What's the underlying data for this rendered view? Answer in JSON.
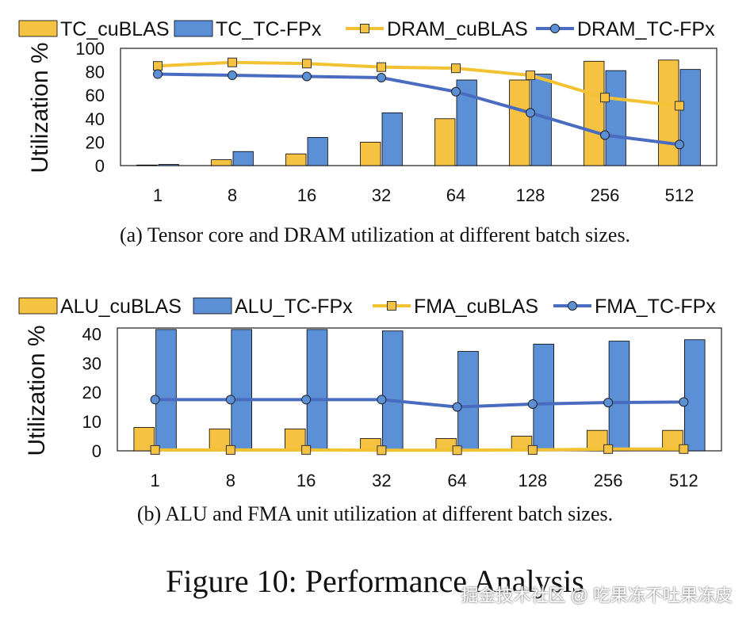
{
  "figure_title": "Figure 10: Performance Analysis",
  "watermark": "掘金技术社区 @ 吃果冻不吐果冻皮",
  "colors": {
    "yellow": "#F5C242",
    "yellow_line": "#F2C232",
    "blue": "#5B8FD6",
    "blue_line": "#4A6CC0",
    "border": "#1a1a1a"
  },
  "chart_data": [
    {
      "type": "bar",
      "caption": "(a) Tensor core and DRAM utilization at different batch sizes.",
      "ylabel": "Utilization %",
      "ylim": [
        0,
        100
      ],
      "yticks": [
        "0",
        "20",
        "40",
        "60",
        "80",
        "100"
      ],
      "yticks_values": [
        0,
        20,
        40,
        60,
        80,
        100
      ],
      "categories": [
        "1",
        "8",
        "16",
        "32",
        "64",
        "128",
        "256",
        "512"
      ],
      "series": [
        {
          "name": "TC_cuBLAS",
          "kind": "bar",
          "color": "yellow",
          "values": [
            0.5,
            5,
            10,
            20,
            40,
            73,
            89,
            90
          ]
        },
        {
          "name": "TC_TC-FPx",
          "kind": "bar",
          "color": "blue",
          "values": [
            1,
            12,
            24,
            45,
            73,
            78,
            81,
            82
          ]
        },
        {
          "name": "DRAM_cuBLAS",
          "kind": "line",
          "marker": "square",
          "color": "yellow",
          "values": [
            85,
            88,
            87,
            84,
            83,
            77,
            58,
            51
          ]
        },
        {
          "name": "DRAM_TC-FPx",
          "kind": "line",
          "marker": "circle",
          "color": "blue",
          "values": [
            78,
            77,
            76,
            75,
            63,
            45,
            26,
            18
          ]
        }
      ]
    },
    {
      "type": "bar",
      "caption": "(b) ALU and FMA unit utilization at different batch sizes.",
      "ylabel": "Utilization %",
      "ylim": [
        0,
        42
      ],
      "yticks": [
        "0",
        "10",
        "20",
        "30",
        "40"
      ],
      "yticks_values": [
        0,
        10,
        20,
        30,
        40
      ],
      "categories": [
        "1",
        "8",
        "16",
        "32",
        "64",
        "128",
        "256",
        "512"
      ],
      "series": [
        {
          "name": "ALU_cuBLAS",
          "kind": "bar",
          "color": "yellow",
          "values": [
            8,
            7.5,
            7.5,
            4.2,
            4.2,
            5,
            7,
            7
          ]
        },
        {
          "name": "ALU_TC-FPx",
          "kind": "bar",
          "color": "blue",
          "values": [
            41.5,
            41.5,
            41.5,
            41,
            34,
            36.5,
            37.5,
            38
          ]
        },
        {
          "name": "FMA_cuBLAS",
          "kind": "line",
          "marker": "square",
          "color": "yellow",
          "values": [
            0.3,
            0.3,
            0.3,
            0.2,
            0.2,
            0.3,
            0.6,
            0.6
          ]
        },
        {
          "name": "FMA_TC-FPx",
          "kind": "line",
          "marker": "circle",
          "color": "blue",
          "values": [
            17.5,
            17.5,
            17.5,
            17.5,
            15,
            16,
            16.5,
            16.7
          ]
        }
      ]
    }
  ]
}
